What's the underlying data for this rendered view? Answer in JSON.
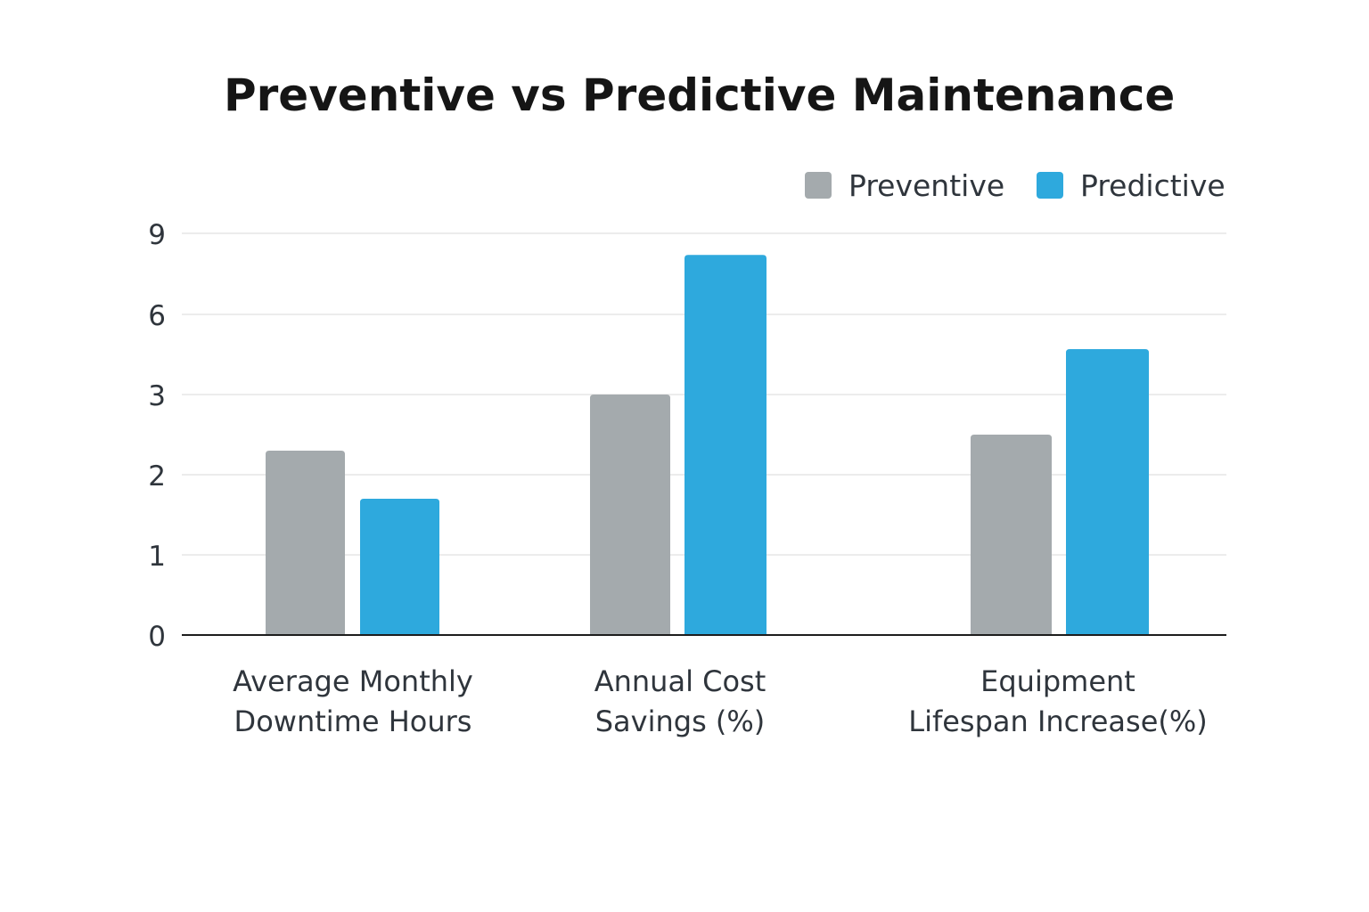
{
  "chart_data": {
    "type": "bar",
    "title": "Preventive vs Predictive Maintenance",
    "xlabel": "",
    "ylabel": "",
    "y_ticks": [
      "0",
      "1",
      "2",
      "3",
      "6",
      "9"
    ],
    "y_tick_values": [
      0,
      1,
      2,
      3,
      6,
      9
    ],
    "categories": [
      [
        "Average Monthly",
        "Downtime Hours"
      ],
      [
        "Annual Cost",
        "Savings (%)"
      ],
      [
        "Equipment",
        "Lifespan Increase(%)"
      ]
    ],
    "series": [
      {
        "name": "Preventive",
        "color": "#a4aaad",
        "values": [
          2.3,
          3,
          2.5
        ]
      },
      {
        "name": "Predictive",
        "color": "#2ea9dd",
        "values": [
          1.7,
          8.2,
          4.7
        ]
      }
    ],
    "grid": true,
    "legend_position": "top-right"
  },
  "colors": {
    "axis": "#1d1d1d",
    "grid": "#e6e6e6",
    "text": "#2f353c",
    "title": "#151515"
  }
}
